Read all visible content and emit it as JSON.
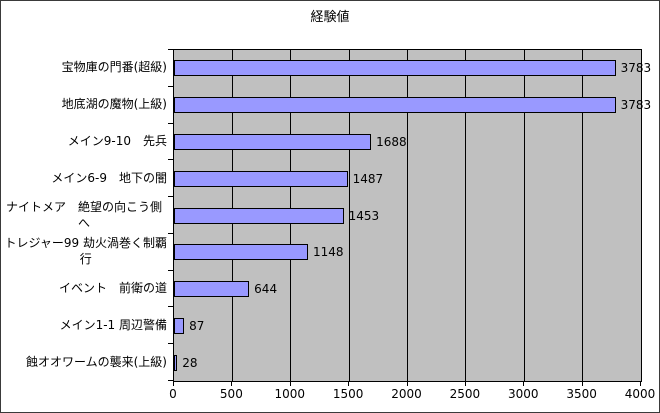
{
  "chart_data": {
    "type": "bar",
    "orientation": "horizontal",
    "title": "経験値",
    "categories": [
      "宝物庫の門番(超級)",
      "地底湖の魔物(上級)",
      "メイン9-10　先兵",
      "メイン6-9　地下の闇",
      "ナイトメア　絶望の向こう側へ",
      "トレジャー99 劫火渦巻く制覇\n行",
      "イベント　前衛の道",
      "メイン1-1 周辺警備",
      "蝕オオワームの襲来(上級)"
    ],
    "values": [
      3783,
      3783,
      1688,
      1487,
      1453,
      1148,
      644,
      87,
      28
    ],
    "value_labels": [
      "3783",
      "3783",
      "1688",
      "1487",
      "1453",
      "1148",
      "644",
      "87",
      "28"
    ],
    "xlabel": "",
    "ylabel": "",
    "xlim": [
      0,
      4000
    ],
    "xticks": [
      "0",
      "500",
      "1000",
      "1500",
      "2000",
      "2500",
      "3000",
      "3500",
      "4000"
    ],
    "grid": true,
    "legend": false,
    "colors": {
      "bar_fill": "#9999FF",
      "bar_border": "#000000",
      "plot_background": "#C0C0C0",
      "gridline": "#000000",
      "frame_border": "#3a3a3a",
      "page_background": "#FFFFFF",
      "text": "#000000"
    }
  }
}
